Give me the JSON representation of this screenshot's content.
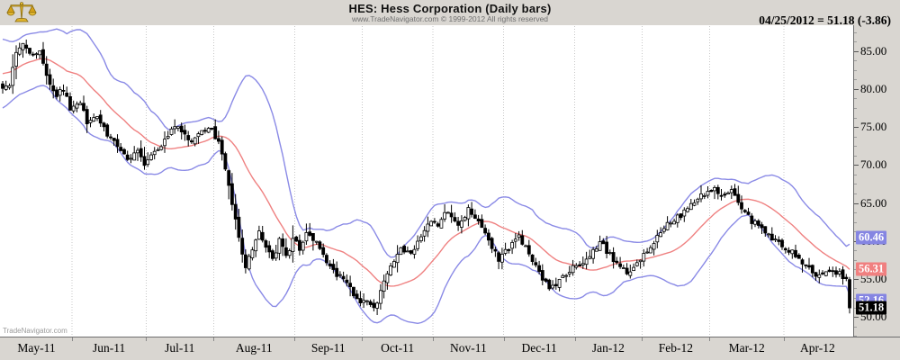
{
  "header": {
    "title": "HES:  Hess Corporation  (Daily bars)",
    "copyright": "www.TradeNavigator.com © 1999-2012 All rights reserved",
    "quote_line": "04/25/2012 = 51.18 (-3.86)",
    "logo_icon": "gold-scales-logo"
  },
  "watermark": "TradeNavigator.com",
  "chart_data": {
    "type": "candlestick",
    "symbol": "HES",
    "timeframe": "daily",
    "title": "HES: Hess Corporation (Daily bars)",
    "legend_position": "none",
    "grid": "vertical-dotted-month-lines",
    "x_axis": {
      "bars_total": 252,
      "months": [
        {
          "label": "May-11",
          "start_bar": 0
        },
        {
          "label": "Jun-11",
          "start_bar": 21
        },
        {
          "label": "Jul-11",
          "start_bar": 43
        },
        {
          "label": "Aug-11",
          "start_bar": 63
        },
        {
          "label": "Sep-11",
          "start_bar": 87
        },
        {
          "label": "Oct-11",
          "start_bar": 107
        },
        {
          "label": "Nov-11",
          "start_bar": 128
        },
        {
          "label": "Dec-11",
          "start_bar": 149
        },
        {
          "label": "Jan-12",
          "start_bar": 170
        },
        {
          "label": "Feb-12",
          "start_bar": 190
        },
        {
          "label": "Mar-12",
          "start_bar": 210
        },
        {
          "label": "Apr-12",
          "start_bar": 232
        }
      ]
    },
    "y_axis": {
      "ticks": [
        "85.00",
        "80.00",
        "75.00",
        "70.00",
        "65.00",
        "60.00",
        "55.00",
        "50.00"
      ],
      "tick_values": [
        85,
        80,
        75,
        70,
        65,
        60,
        55,
        50
      ],
      "minor_tick_step": 1.25,
      "top_price": 88.4,
      "bottom_price": 47.4
    },
    "series": {
      "name": "HES daily closes (anchor points read from chart, [bar_index, price])",
      "close_anchors": [
        [
          0,
          80.3
        ],
        [
          2,
          80.8
        ],
        [
          4,
          84.5
        ],
        [
          6,
          86.2
        ],
        [
          9,
          84.3
        ],
        [
          11,
          85.2
        ],
        [
          13,
          81.5
        ],
        [
          16,
          79.3
        ],
        [
          18,
          80.0
        ],
        [
          20,
          77.3
        ],
        [
          23,
          78.3
        ],
        [
          25,
          75.8
        ],
        [
          28,
          76.5
        ],
        [
          31,
          74.0
        ],
        [
          34,
          72.5
        ],
        [
          37,
          71.0
        ],
        [
          40,
          71.8
        ],
        [
          42,
          70.2
        ],
        [
          45,
          71.5
        ],
        [
          48,
          73.0
        ],
        [
          51,
          75.3
        ],
        [
          53,
          74.2
        ],
        [
          56,
          72.8
        ],
        [
          59,
          74.3
        ],
        [
          62,
          74.6
        ],
        [
          64,
          73.0
        ],
        [
          66,
          69.5
        ],
        [
          68,
          65.0
        ],
        [
          70,
          60.5
        ],
        [
          72,
          56.5
        ],
        [
          74,
          59.0
        ],
        [
          76,
          61.5
        ],
        [
          78,
          59.0
        ],
        [
          80,
          57.5
        ],
        [
          82,
          60.0
        ],
        [
          84,
          58.0
        ],
        [
          86,
          60.2
        ],
        [
          88,
          59.0
        ],
        [
          90,
          61.0
        ],
        [
          93,
          60.0
        ],
        [
          96,
          57.5
        ],
        [
          99,
          55.5
        ],
        [
          102,
          54.5
        ],
        [
          104,
          52.8
        ],
        [
          106,
          52.2
        ],
        [
          108,
          52.0
        ],
        [
          110,
          50.9
        ],
        [
          112,
          53.5
        ],
        [
          115,
          56.5
        ],
        [
          118,
          59.0
        ],
        [
          121,
          58.0
        ],
        [
          124,
          60.5
        ],
        [
          127,
          62.6
        ],
        [
          129,
          62.0
        ],
        [
          132,
          64.0
        ],
        [
          135,
          61.8
        ],
        [
          138,
          64.3
        ],
        [
          141,
          62.8
        ],
        [
          144,
          59.8
        ],
        [
          147,
          57.6
        ],
        [
          150,
          59.0
        ],
        [
          153,
          60.6
        ],
        [
          156,
          58.3
        ],
        [
          159,
          55.8
        ],
        [
          162,
          53.6
        ],
        [
          165,
          54.8
        ],
        [
          168,
          56.2
        ],
        [
          171,
          56.8
        ],
        [
          174,
          58.0
        ],
        [
          177,
          59.8
        ],
        [
          180,
          58.2
        ],
        [
          183,
          56.6
        ],
        [
          186,
          55.6
        ],
        [
          189,
          57.8
        ],
        [
          192,
          59.0
        ],
        [
          195,
          61.2
        ],
        [
          198,
          62.6
        ],
        [
          201,
          63.3
        ],
        [
          204,
          64.6
        ],
        [
          207,
          65.8
        ],
        [
          209,
          66.4
        ],
        [
          211,
          67.0
        ],
        [
          213,
          65.8
        ],
        [
          216,
          66.6
        ],
        [
          219,
          64.2
        ],
        [
          222,
          62.6
        ],
        [
          225,
          61.6
        ],
        [
          228,
          60.4
        ],
        [
          231,
          59.4
        ],
        [
          234,
          58.4
        ],
        [
          237,
          57.2
        ],
        [
          240,
          55.8
        ],
        [
          243,
          55.4
        ],
        [
          246,
          56.2
        ],
        [
          248,
          55.6
        ],
        [
          250,
          55.04
        ],
        [
          251,
          51.18
        ]
      ],
      "prev_close": 55.04,
      "last_bar": {
        "date": "04/25/2012",
        "open": 54.9,
        "high": 55.25,
        "low": 50.45,
        "close": 51.18,
        "change": -3.86
      },
      "pre_window": {
        "bars": 20,
        "from": 78.0,
        "to": 86.0
      }
    },
    "overlays": {
      "bollinger_period": 20,
      "bollinger_mult": 2,
      "upper_band_last": 60.46,
      "midline_last": 56.31,
      "lower_band_last": 52.16,
      "last_price": 51.18
    },
    "axis_badges": [
      {
        "value": "60.46",
        "price": 60.46,
        "bg": "#8585e2",
        "fg": "#ffffff"
      },
      {
        "value": "56.31",
        "price": 56.31,
        "bg": "#f08080",
        "fg": "#ffffff"
      },
      {
        "value": "52.16",
        "price": 52.16,
        "bg": "#8585e2",
        "fg": "#ffffff"
      },
      {
        "value": "51.18",
        "price": 51.18,
        "bg": "#000000",
        "fg": "#ffffff"
      }
    ],
    "colors": {
      "band": "#8a8ae6",
      "moving_average": "#ef8181",
      "up_candle_fill": "#ffffff",
      "down_candle_fill": "#000000",
      "candle_stroke": "#000000",
      "grid": "#c8c8c8",
      "plot_bg": "#ffffff",
      "chrome_bg": "#d9d6d1"
    }
  }
}
